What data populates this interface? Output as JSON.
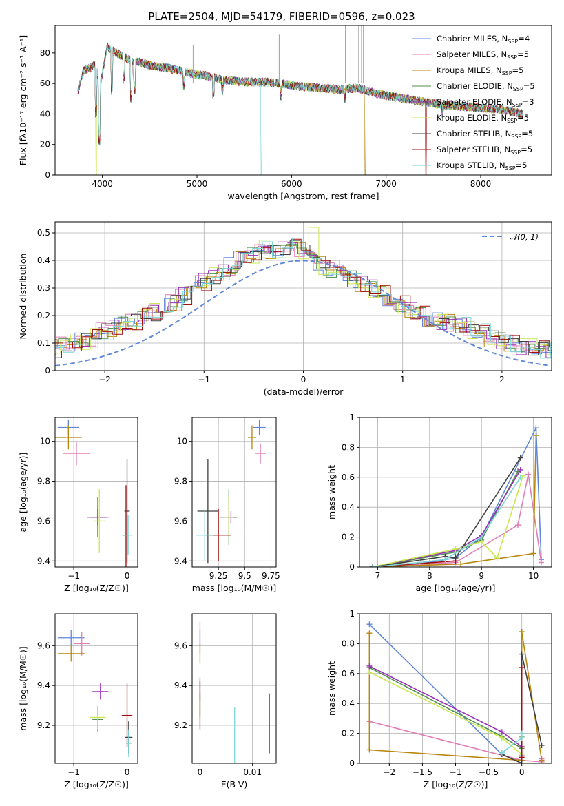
{
  "figure_title": "PLATE=2504, MJD=54179, FIBERID=0596, z=0.023",
  "models": [
    {
      "name": "Chabrier MILES",
      "nssp": "4",
      "color": "#5f86d9"
    },
    {
      "name": "Salpeter MILES",
      "nssp": "5",
      "color": "#e07fb7"
    },
    {
      "name": "Kroupa MILES",
      "nssp": "5",
      "color": "#b8860b"
    },
    {
      "name": "Chabrier ELODIE",
      "nssp": "5",
      "color": "#4f8f4f"
    },
    {
      "name": "Salpeter ELODIE",
      "nssp": "3",
      "color": "#9b30b8"
    },
    {
      "name": "Kroupa ELODIE",
      "nssp": "5",
      "color": "#c9e84f"
    },
    {
      "name": "Chabrier STELIB",
      "nssp": "5",
      "color": "#404040"
    },
    {
      "name": "Salpeter STELIB",
      "nssp": "5",
      "color": "#a01010"
    },
    {
      "name": "Kroupa STELIB",
      "nssp": "5",
      "color": "#7ad6d6"
    }
  ],
  "legend_nssp_label": "N",
  "legend_nssp_sub": "SSP",
  "chart_data": [
    {
      "id": "spectrum",
      "type": "line",
      "xlabel": "wavelength [Angstrom, rest frame]",
      "ylabel": "Flux [fλ10⁻¹⁷ erg cm⁻² s⁻¹ A⁻¹]",
      "xlim": [
        3500,
        8750
      ],
      "ylim": [
        0,
        98
      ],
      "xticks": [
        4000,
        5000,
        6000,
        7000,
        8000
      ],
      "yticks": [
        0,
        20,
        40,
        60,
        80
      ],
      "legend": "top-right",
      "continuum": [
        [
          3740,
          55
        ],
        [
          3800,
          68
        ],
        [
          3860,
          70
        ],
        [
          3920,
          72
        ],
        [
          3980,
          60
        ],
        [
          4050,
          84
        ],
        [
          4150,
          80
        ],
        [
          4300,
          75
        ],
        [
          4400,
          74
        ],
        [
          4500,
          72
        ],
        [
          4700,
          70
        ],
        [
          4900,
          67
        ],
        [
          5100,
          65
        ],
        [
          5300,
          62
        ],
        [
          5500,
          61
        ],
        [
          5700,
          61
        ],
        [
          5900,
          60
        ],
        [
          6100,
          58
        ],
        [
          6300,
          57
        ],
        [
          6500,
          56
        ],
        [
          6700,
          57
        ],
        [
          6800,
          55
        ],
        [
          7000,
          52
        ],
        [
          7200,
          50
        ],
        [
          7400,
          48
        ],
        [
          7600,
          46
        ],
        [
          7800,
          45
        ],
        [
          8000,
          44
        ],
        [
          8200,
          43
        ],
        [
          8450,
          40
        ]
      ],
      "absorption": [
        [
          3934,
          40
        ],
        [
          3969,
          22
        ],
        [
          4102,
          55
        ],
        [
          4227,
          62
        ],
        [
          4305,
          50
        ],
        [
          4340,
          55
        ],
        [
          4861,
          58
        ],
        [
          5175,
          50
        ],
        [
          5270,
          55
        ],
        [
          5890,
          52
        ],
        [
          6563,
          50
        ],
        [
          7600,
          40
        ]
      ],
      "drops": [
        [
          3935,
          0
        ],
        [
          5680,
          0
        ],
        [
          6780,
          0
        ],
        [
          7420,
          0
        ]
      ],
      "spikes": [
        [
          4960,
          85
        ],
        [
          5870,
          92
        ],
        [
          6570,
          98
        ],
        [
          6710,
          98
        ],
        [
          6740,
          98
        ],
        [
          6760,
          98
        ]
      ]
    },
    {
      "id": "residuals",
      "type": "step-histogram",
      "xlabel": "(data-model)/error",
      "ylabel": "Normed distribution",
      "xlim": [
        -2.5,
        2.5
      ],
      "ylim": [
        0,
        0.54
      ],
      "xticks": [
        -2,
        -1,
        0,
        1,
        2
      ],
      "yticks": [
        0.0,
        0.1,
        0.2,
        0.3,
        0.4,
        0.5
      ],
      "reference_label": "𝒩(0, 1)",
      "reference_color": "#5f86d9",
      "bin_width": 0.1,
      "base": [
        0.04,
        0.05,
        0.06,
        0.07,
        0.08,
        0.09,
        0.1,
        0.11,
        0.12,
        0.14,
        0.15,
        0.17,
        0.18,
        0.2,
        0.21,
        0.23,
        0.25,
        0.27,
        0.3,
        0.32,
        0.34,
        0.36,
        0.38,
        0.4,
        0.42,
        0.44,
        0.42,
        0.44,
        0.45,
        0.43,
        0.42,
        0.38,
        0.37,
        0.35,
        0.33,
        0.32,
        0.3,
        0.28,
        0.26,
        0.24,
        0.22,
        0.2,
        0.19,
        0.18,
        0.17,
        0.16,
        0.15,
        0.14,
        0.12,
        0.11,
        0.1,
        0.09,
        0.09,
        0.08,
        0.07,
        0.07,
        0.06,
        0.06,
        0.05,
        0.05
      ]
    },
    {
      "id": "age_vs_Z",
      "type": "errorbar",
      "xlabel": "Z [log₁₀(Z/Z☉)]",
      "ylabel": "age  [log₁₀(age/yr)]",
      "xlim": [
        -1.35,
        0.2
      ],
      "ylim": [
        9.37,
        10.12
      ],
      "xticks": [
        -1,
        0
      ],
      "yticks": [
        9.4,
        9.6,
        9.8,
        10.0
      ],
      "points": [
        {
          "m": 0,
          "x": -1.1,
          "y": 10.07,
          "xe": 0.2,
          "ye": 0.04
        },
        {
          "m": 1,
          "x": -0.95,
          "y": 9.94,
          "xe": 0.25,
          "ye": 0.06
        },
        {
          "m": 2,
          "x": -1.1,
          "y": 10.02,
          "xe": 0.25,
          "ye": 0.06
        },
        {
          "m": 3,
          "x": -0.55,
          "y": 9.62,
          "xe": 0.15,
          "ye": 0.1
        },
        {
          "m": 4,
          "x": -0.55,
          "y": 9.62,
          "xe": 0.2,
          "ye": 0.04
        },
        {
          "m": 5,
          "x": -0.52,
          "y": 9.6,
          "xe": 0.12,
          "ye": 0.16
        },
        {
          "m": 6,
          "x": 0.0,
          "y": 9.65,
          "xe": 0.05,
          "ye": 0.26
        },
        {
          "m": 7,
          "x": -0.02,
          "y": 9.53,
          "xe": 0.06,
          "ye": 0.25
        },
        {
          "m": 8,
          "x": 0.02,
          "y": 9.53,
          "xe": 0.08,
          "ye": 0.1
        }
      ]
    },
    {
      "id": "age_vs_mass",
      "type": "errorbar",
      "xlabel": "mass [log₁₀(M/M☉)]",
      "ylabel": "",
      "xlim": [
        9.0,
        9.8
      ],
      "ylim": [
        9.37,
        10.12
      ],
      "xticks": [
        9.25,
        9.5,
        9.75
      ],
      "yticks": [
        9.4,
        9.6,
        9.8,
        10.0
      ],
      "points": [
        {
          "m": 0,
          "x": 9.64,
          "y": 10.07,
          "xe": 0.06,
          "ye": 0.04
        },
        {
          "m": 1,
          "x": 9.65,
          "y": 9.94,
          "xe": 0.05,
          "ye": 0.05
        },
        {
          "m": 2,
          "x": 9.57,
          "y": 10.02,
          "xe": 0.04,
          "ye": 0.06
        },
        {
          "m": 3,
          "x": 9.35,
          "y": 9.62,
          "xe": 0.08,
          "ye": 0.14
        },
        {
          "m": 4,
          "x": 9.37,
          "y": 9.62,
          "xe": 0.05,
          "ye": 0.03
        },
        {
          "m": 5,
          "x": 9.35,
          "y": 9.62,
          "xe": 0.04,
          "ye": 0.1
        },
        {
          "m": 6,
          "x": 9.15,
          "y": 9.65,
          "xe": 0.1,
          "ye": 0.26
        },
        {
          "m": 7,
          "x": 9.25,
          "y": 9.53,
          "xe": 0.12,
          "ye": 0.13
        },
        {
          "m": 8,
          "x": 9.12,
          "y": 9.53,
          "xe": 0.08,
          "ye": 0.13
        }
      ]
    },
    {
      "id": "weight_vs_age",
      "type": "line",
      "xlabel": "age  [log₁₀(age/yr)]",
      "ylabel": "mass weight",
      "xlim": [
        6.65,
        10.35
      ],
      "ylim": [
        0,
        1.0
      ],
      "xticks": [
        7,
        8,
        9,
        10
      ],
      "yticks": [
        0.0,
        0.2,
        0.4,
        0.6,
        0.8,
        1.0
      ],
      "series": [
        {
          "m": 0,
          "x": [
            6.9,
            7.8,
            8.5,
            9.0,
            10.05,
            10.15
          ],
          "y": [
            0.0,
            0.02,
            0.06,
            0.2,
            0.93,
            0.05
          ]
        },
        {
          "m": 1,
          "x": [
            6.9,
            8.5,
            9.7,
            9.9,
            10.15
          ],
          "y": [
            0.0,
            0.03,
            0.28,
            0.62,
            0.03
          ]
        },
        {
          "m": 2,
          "x": [
            6.9,
            8.6,
            10.0,
            10.05
          ],
          "y": [
            0.0,
            0.02,
            0.09,
            0.88
          ]
        },
        {
          "m": 3,
          "x": [
            6.9,
            8.5,
            9.0,
            9.7
          ],
          "y": [
            0.0,
            0.1,
            0.18,
            0.64
          ]
        },
        {
          "m": 4,
          "x": [
            6.9,
            8.5,
            9.0,
            9.75
          ],
          "y": [
            0.0,
            0.11,
            0.21,
            0.65
          ]
        },
        {
          "m": 5,
          "x": [
            6.9,
            8.5,
            9.0,
            9.3,
            9.8
          ],
          "y": [
            0.0,
            0.12,
            0.17,
            0.06,
            0.61
          ]
        },
        {
          "m": 6,
          "x": [
            6.9,
            8.3,
            8.5,
            9.75
          ],
          "y": [
            0.0,
            0.07,
            0.06,
            0.73
          ]
        },
        {
          "m": 7,
          "x": [
            6.9,
            8.5
          ],
          "y": [
            0.0,
            0.04
          ]
        },
        {
          "m": 8,
          "x": [
            6.9,
            7.8,
            8.3,
            9.0,
            9.75
          ],
          "y": [
            0.0,
            0.03,
            0.05,
            0.2,
            0.6
          ]
        }
      ]
    },
    {
      "id": "mass_vs_Z",
      "type": "errorbar",
      "xlabel": "Z [log₁₀(Z/Z☉)]",
      "ylabel": "mass [log₁₀(M/M☉)]",
      "xlim": [
        -1.35,
        0.2
      ],
      "ylim": [
        9.01,
        9.76
      ],
      "xticks": [
        -1,
        0
      ],
      "yticks": [
        9.2,
        9.4,
        9.6
      ],
      "points": [
        {
          "m": 0,
          "x": -1.05,
          "y": 9.64,
          "xe": 0.25,
          "ye": 0.04
        },
        {
          "m": 1,
          "x": -0.85,
          "y": 9.61,
          "xe": 0.15,
          "ye": 0.06
        },
        {
          "m": 2,
          "x": -1.05,
          "y": 9.56,
          "xe": 0.25,
          "ye": 0.04
        },
        {
          "m": 3,
          "x": -0.55,
          "y": 9.23,
          "xe": 0.1,
          "ye": 0.06
        },
        {
          "m": 4,
          "x": -0.5,
          "y": 9.37,
          "xe": 0.15,
          "ye": 0.04
        },
        {
          "m": 5,
          "x": -0.55,
          "y": 9.24,
          "xe": 0.15,
          "ye": 0.06
        },
        {
          "m": 6,
          "x": 0.03,
          "y": 9.14,
          "xe": 0.07,
          "ye": 0.08
        },
        {
          "m": 7,
          "x": 0.0,
          "y": 9.25,
          "xe": 0.1,
          "ye": 0.16
        },
        {
          "m": 8,
          "x": 0.03,
          "y": 9.11,
          "xe": 0.05,
          "ye": 0.07
        }
      ]
    },
    {
      "id": "mass_vs_ebv",
      "type": "errorbar",
      "xlabel": "E(B-V)",
      "ylabel": "",
      "xlim": [
        -0.0015,
        0.0145
      ],
      "ylim": [
        9.01,
        9.76
      ],
      "xticks": [
        0.0,
        0.01
      ],
      "yticks": [
        9.2,
        9.4,
        9.6
      ],
      "points": [
        {
          "m": 0,
          "x": 0.0,
          "y": 9.64,
          "xe": 0.0,
          "ye": 0.04
        },
        {
          "m": 1,
          "x": 0.0,
          "y": 9.64,
          "xe": 0.0,
          "ye": 0.08
        },
        {
          "m": 2,
          "x": 0.0,
          "y": 9.56,
          "xe": 0.0,
          "ye": 0.05
        },
        {
          "m": 3,
          "x": 0.0,
          "y": 9.3,
          "xe": 0.0,
          "ye": 0.06
        },
        {
          "m": 4,
          "x": 0.0,
          "y": 9.38,
          "xe": 0.0,
          "ye": 0.06
        },
        {
          "m": 5,
          "x": 0.0,
          "y": 9.3,
          "xe": 0.0,
          "ye": 0.05
        },
        {
          "m": 6,
          "x": 0.0132,
          "y": 9.21,
          "xe": 0.0,
          "ye": 0.15
        },
        {
          "m": 7,
          "x": 0.0,
          "y": 9.3,
          "xe": 0.0,
          "ye": 0.12
        },
        {
          "m": 8,
          "x": 0.0066,
          "y": 9.14,
          "xe": 0.0,
          "ye": 0.15
        }
      ]
    },
    {
      "id": "weight_vs_Z",
      "type": "line",
      "xlabel": "Z [log₁₀(Z/Z☉)]",
      "ylabel": "mass weight",
      "xlim": [
        -2.45,
        0.45
      ],
      "ylim": [
        0,
        1.0
      ],
      "xticks": [
        -2.0,
        -1.5,
        -1.0,
        -0.5,
        0.0
      ],
      "yticks": [
        0.0,
        0.2,
        0.4,
        0.6,
        0.8,
        1.0
      ],
      "series": [
        {
          "m": 0,
          "x": [
            -2.3,
            -0.3,
            0.0,
            0.0
          ],
          "y": [
            0.93,
            0.06,
            0.0,
            0.05
          ]
        },
        {
          "m": 1,
          "x": [
            -2.3,
            0.0,
            0.3,
            0.3
          ],
          "y": [
            0.28,
            0.02,
            0.01,
            0.03
          ]
        },
        {
          "m": 2,
          "x": [
            -2.3,
            -2.3,
            0.0,
            0.0,
            0.3
          ],
          "y": [
            0.87,
            0.09,
            0.02,
            0.88,
            0.02
          ]
        },
        {
          "m": 3,
          "x": [
            -2.3,
            -0.3,
            0.0,
            0.0
          ],
          "y": [
            0.64,
            0.18,
            0.1,
            0.18
          ]
        },
        {
          "m": 4,
          "x": [
            -2.3,
            -0.3,
            0.0,
            0.0
          ],
          "y": [
            0.65,
            0.21,
            0.11,
            0.11
          ]
        },
        {
          "m": 5,
          "x": [
            -2.3,
            -0.3,
            0.0,
            0.0
          ],
          "y": [
            0.61,
            0.17,
            0.06,
            0.17
          ]
        },
        {
          "m": 6,
          "x": [
            -0.3,
            0.0,
            0.0,
            0.3
          ],
          "y": [
            0.06,
            0.0,
            0.73,
            0.12
          ]
        },
        {
          "m": 7,
          "x": [
            0.0,
            0.0
          ],
          "y": [
            0.64,
            0.04
          ]
        },
        {
          "m": 8,
          "x": [
            -0.3,
            0.0,
            0.0
          ],
          "y": [
            0.07,
            0.17,
            0.2
          ]
        }
      ]
    }
  ]
}
